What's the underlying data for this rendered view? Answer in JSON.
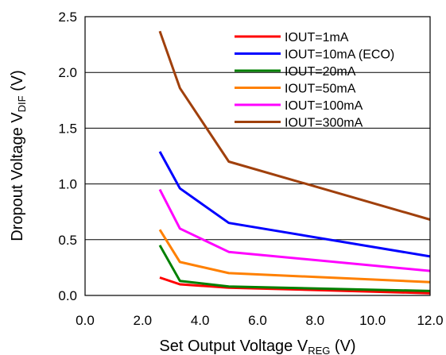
{
  "chart_data": {
    "type": "line",
    "xlabel": {
      "main": "Set Output Voltage V",
      "sub": "REG",
      "unit": " (V)"
    },
    "ylabel": {
      "main": "Dropout Voltage V",
      "sub": "DIF",
      "unit": " (V)"
    },
    "xlim": [
      0,
      12
    ],
    "ylim": [
      0,
      2.5
    ],
    "xticks": [
      "0.0",
      "2.0",
      "4.0",
      "6.0",
      "8.0",
      "10.0",
      "12.0"
    ],
    "yticks": [
      "0.0",
      "0.5",
      "1.0",
      "1.5",
      "2.0",
      "2.5"
    ],
    "grid": "horizontal",
    "legend_position": "top-right",
    "series": [
      {
        "name": "IOUT=1mA",
        "color": "#ff0000",
        "points": [
          [
            2.6,
            0.16
          ],
          [
            3.3,
            0.1
          ],
          [
            5.0,
            0.07
          ],
          [
            12.0,
            0.02
          ]
        ]
      },
      {
        "name": "IOUT=10mA (ECO)",
        "color": "#0000ff",
        "points": [
          [
            2.6,
            1.29
          ],
          [
            3.3,
            0.96
          ],
          [
            5.0,
            0.65
          ],
          [
            12.0,
            0.35
          ]
        ]
      },
      {
        "name": "IOUT=20mA",
        "color": "#008000",
        "points": [
          [
            2.6,
            0.45
          ],
          [
            3.3,
            0.13
          ],
          [
            5.0,
            0.08
          ],
          [
            12.0,
            0.04
          ]
        ]
      },
      {
        "name": "IOUT=50mA",
        "color": "#ff8000",
        "points": [
          [
            2.6,
            0.59
          ],
          [
            3.3,
            0.3
          ],
          [
            5.0,
            0.2
          ],
          [
            12.0,
            0.12
          ]
        ]
      },
      {
        "name": "IOUT=100mA",
        "color": "#ff00ff",
        "points": [
          [
            2.6,
            0.95
          ],
          [
            3.3,
            0.6
          ],
          [
            5.0,
            0.39
          ],
          [
            12.0,
            0.22
          ]
        ]
      },
      {
        "name": "IOUT=300mA",
        "color": "#a0400c",
        "points": [
          [
            2.6,
            2.37
          ],
          [
            3.3,
            1.86
          ],
          [
            5.0,
            1.2
          ],
          [
            12.0,
            0.68
          ]
        ]
      }
    ]
  }
}
